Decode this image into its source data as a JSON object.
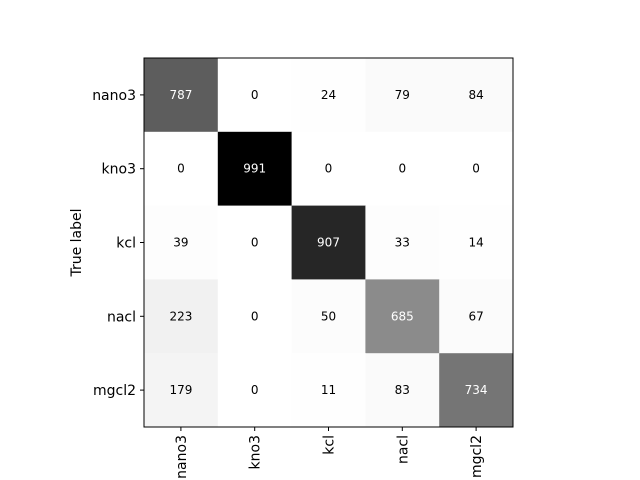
{
  "chart_data": {
    "type": "heatmap",
    "title": "",
    "xlabel": "",
    "ylabel": "True label",
    "row_labels": [
      "nano3",
      "kno3",
      "kcl",
      "nacl",
      "mgcl2"
    ],
    "col_labels": [
      "nano3",
      "kno3",
      "kcl",
      "nacl",
      "mgcl2"
    ],
    "matrix": [
      [
        787,
        0,
        24,
        79,
        84
      ],
      [
        0,
        991,
        0,
        0,
        0
      ],
      [
        39,
        0,
        907,
        33,
        14
      ],
      [
        223,
        0,
        50,
        685,
        67
      ],
      [
        179,
        0,
        11,
        83,
        734
      ]
    ],
    "colormap": "Greys",
    "value_range": [
      0,
      991
    ],
    "grid": false,
    "legend": "none",
    "colors": {
      "low": "#ffffff",
      "high": "#000000",
      "text_dark": "#000000",
      "text_light": "#ffffff",
      "frame": "#000000"
    }
  }
}
